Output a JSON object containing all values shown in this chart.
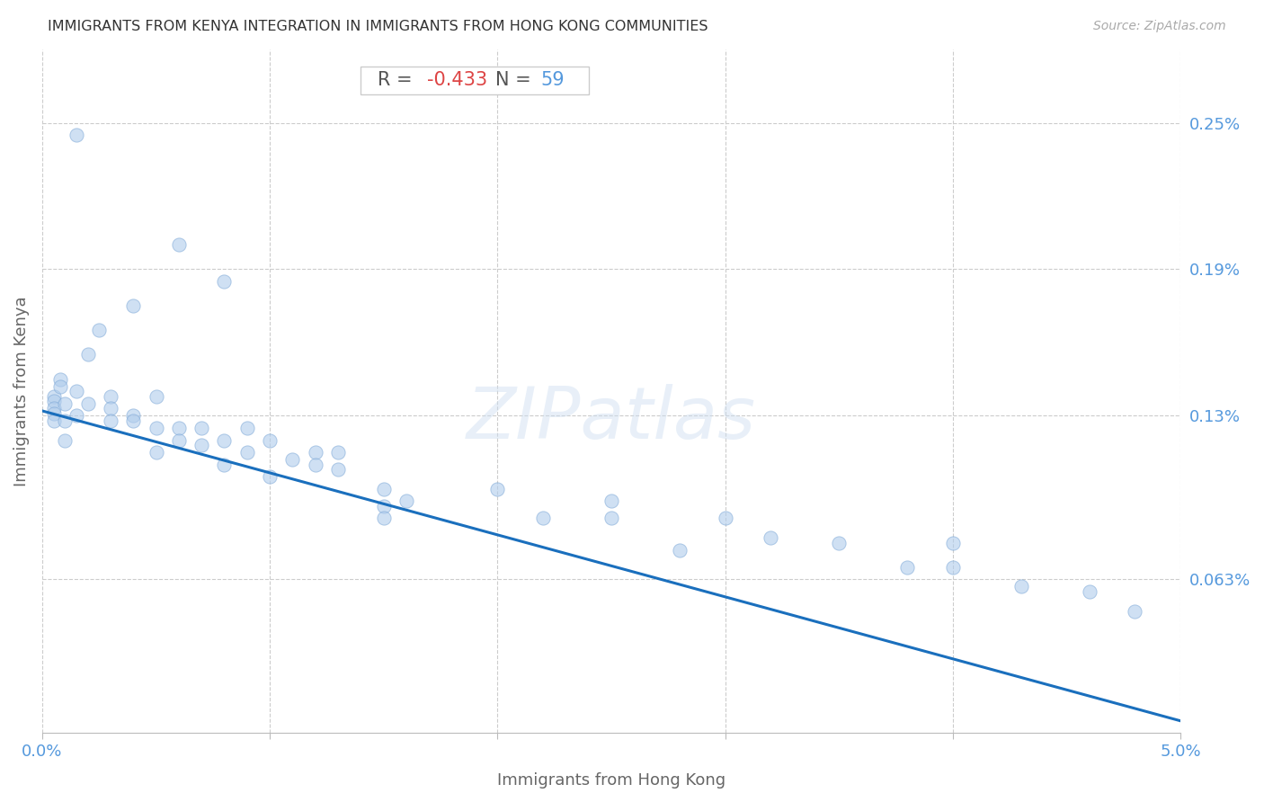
{
  "title": "IMMIGRANTS FROM KENYA INTEGRATION IN IMMIGRANTS FROM HONG KONG COMMUNITIES",
  "source": "Source: ZipAtlas.com",
  "xlabel": "Immigrants from Hong Kong",
  "ylabel": "Immigrants from Kenya",
  "xlim": [
    0.0,
    0.05
  ],
  "ylim": [
    0.0,
    0.0028
  ],
  "xtick_positions": [
    0.0,
    0.01,
    0.02,
    0.03,
    0.04,
    0.05
  ],
  "xticklabels": [
    "0.0%",
    "",
    "",
    "",
    "",
    "5.0%"
  ],
  "ytick_positions": [
    0.00063,
    0.0013,
    0.0019,
    0.0025
  ],
  "yticklabels": [
    "0.063%",
    "0.13%",
    "0.19%",
    "0.25%"
  ],
  "watermark": "ZIPatlas",
  "scatter_color": "#b0ccec",
  "scatter_edgecolor": "#80aad8",
  "line_color": "#1a6fbd",
  "title_color": "#333333",
  "axis_label_color": "#666666",
  "tick_label_color": "#5599dd",
  "R_label_color": "#555555",
  "R_color": "#dd4444",
  "N_color": "#5599dd",
  "scatter_alpha": 0.6,
  "scatter_size": 120,
  "line_y0": 0.00132,
  "line_y1": 5e-05,
  "x_data": [
    0.0015,
    0.006,
    0.008,
    0.004,
    0.0025,
    0.0005,
    0.0005,
    0.0005,
    0.0005,
    0.0005,
    0.0008,
    0.0008,
    0.0015,
    0.0015,
    0.002,
    0.002,
    0.003,
    0.003,
    0.003,
    0.004,
    0.004,
    0.005,
    0.005,
    0.005,
    0.006,
    0.006,
    0.007,
    0.007,
    0.008,
    0.008,
    0.009,
    0.009,
    0.01,
    0.01,
    0.011,
    0.012,
    0.012,
    0.013,
    0.013,
    0.015,
    0.015,
    0.015,
    0.016,
    0.02,
    0.022,
    0.025,
    0.025,
    0.028,
    0.03,
    0.032,
    0.035,
    0.038,
    0.04,
    0.04,
    0.043,
    0.046,
    0.048,
    0.001,
    0.001,
    0.001
  ],
  "y_data": [
    0.00245,
    0.002,
    0.00185,
    0.00175,
    0.00165,
    0.00138,
    0.00136,
    0.00133,
    0.00131,
    0.00128,
    0.00145,
    0.00142,
    0.0014,
    0.0013,
    0.00155,
    0.00135,
    0.00138,
    0.00133,
    0.00128,
    0.0013,
    0.00128,
    0.00138,
    0.00125,
    0.00115,
    0.00125,
    0.0012,
    0.00125,
    0.00118,
    0.0012,
    0.0011,
    0.00125,
    0.00115,
    0.0012,
    0.00105,
    0.00112,
    0.00115,
    0.0011,
    0.00115,
    0.00108,
    0.001,
    0.00093,
    0.00088,
    0.00095,
    0.001,
    0.00088,
    0.00095,
    0.00088,
    0.00075,
    0.00088,
    0.0008,
    0.00078,
    0.00068,
    0.00078,
    0.00068,
    0.0006,
    0.00058,
    0.0005,
    0.00135,
    0.00128,
    0.0012
  ]
}
